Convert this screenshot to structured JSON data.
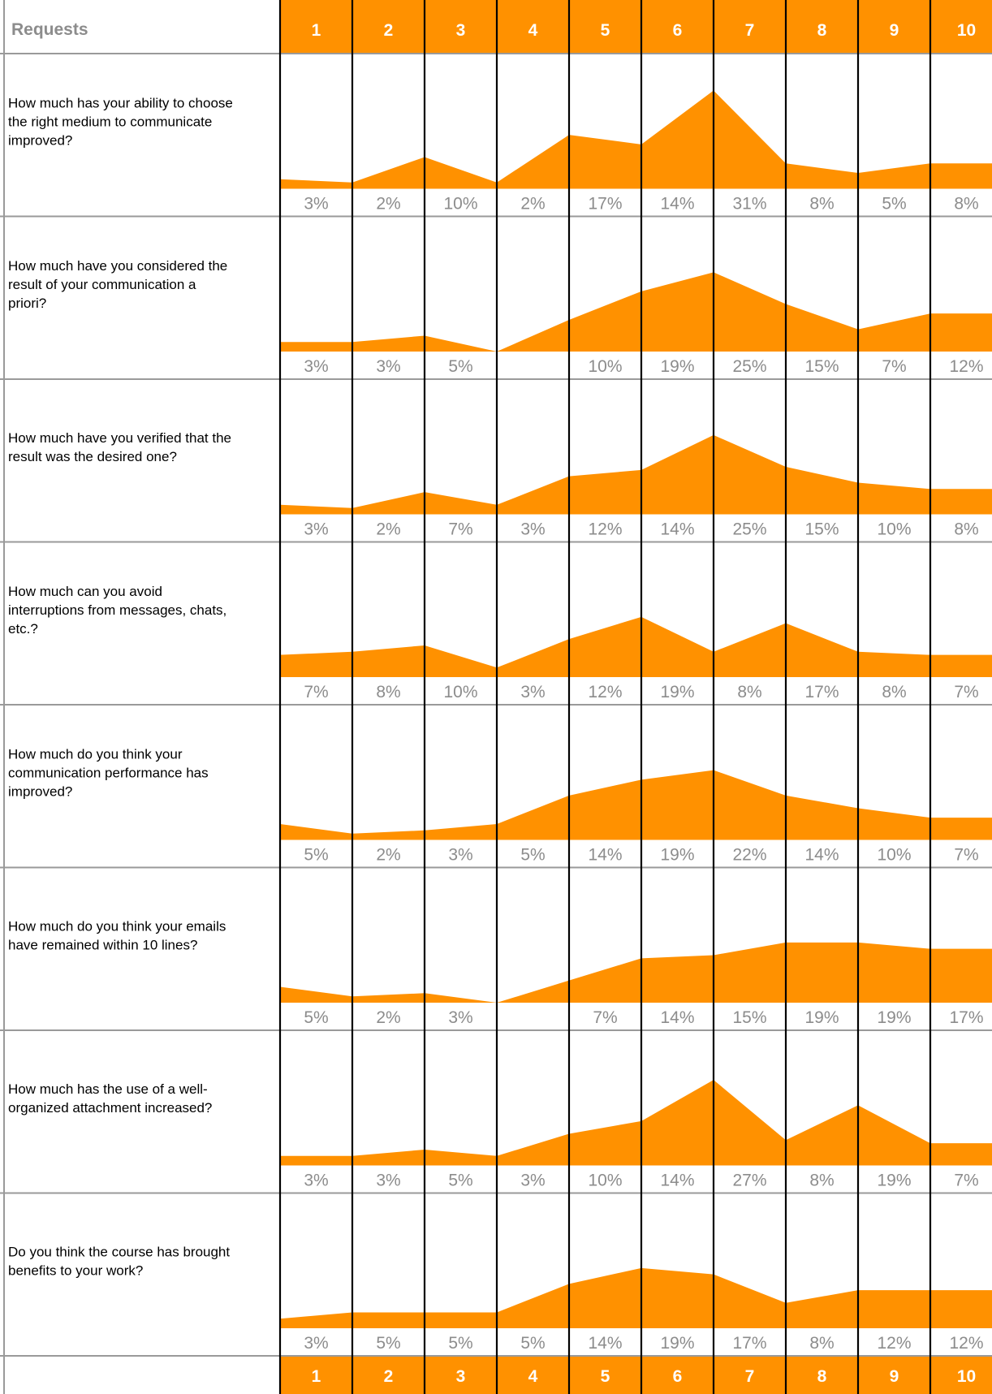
{
  "header": {
    "title": "Requests",
    "scale": [
      "1",
      "2",
      "3",
      "4",
      "5",
      "6",
      "7",
      "8",
      "9",
      "10"
    ]
  },
  "footer": {
    "scale": [
      "1",
      "2",
      "3",
      "4",
      "5",
      "6",
      "7",
      "8",
      "9",
      "10"
    ]
  },
  "colors": {
    "accent": "#ff9100",
    "grid": "#000000",
    "row_border": "#9a9a9a",
    "percent_text": "#8c8c8c"
  },
  "chart_data": {
    "type": "area",
    "x": [
      1,
      2,
      3,
      4,
      5,
      6,
      7,
      8,
      9,
      10
    ],
    "unit": "%",
    "series": [
      {
        "name": "How much has your ability to choose the right medium to communicate improved?",
        "label_lines": [
          "How much has your ability to choose",
          "the right medium to communicate",
          "improved?"
        ],
        "values": [
          3,
          2,
          10,
          2,
          17,
          14,
          31,
          8,
          5,
          8
        ],
        "labels": [
          "3%",
          "2%",
          "10%",
          "2%",
          "17%",
          "14%",
          "31%",
          "8%",
          "5%",
          "8%"
        ]
      },
      {
        "name": "How much have you considered the result of your communication a priori?",
        "label_lines": [
          "How much have you considered the",
          "result of your communication a",
          "priori?"
        ],
        "values": [
          3,
          3,
          5,
          0,
          10,
          19,
          25,
          15,
          7,
          12
        ],
        "labels": [
          "3%",
          "3%",
          "5%",
          "",
          "10%",
          "19%",
          "25%",
          "15%",
          "7%",
          "12%"
        ]
      },
      {
        "name": "How much have you verified that the result was the desired one?",
        "label_lines": [
          "How much have you verified that the",
          "result was the desired one?"
        ],
        "values": [
          3,
          2,
          7,
          3,
          12,
          14,
          25,
          15,
          10,
          8
        ],
        "labels": [
          "3%",
          "2%",
          "7%",
          "3%",
          "12%",
          "14%",
          "25%",
          "15%",
          "10%",
          "8%"
        ]
      },
      {
        "name": "How much can you avoid interruptions from messages, chats, etc.?",
        "label_lines": [
          "How much can you avoid",
          "interruptions from messages, chats,",
          "etc.?"
        ],
        "values": [
          7,
          8,
          10,
          3,
          12,
          19,
          8,
          17,
          8,
          7
        ],
        "labels": [
          "7%",
          "8%",
          "10%",
          "3%",
          "12%",
          "19%",
          "8%",
          "17%",
          "8%",
          "7%"
        ]
      },
      {
        "name": "How much do you think your communication performance has improved?",
        "label_lines": [
          "How much do you think your",
          "communication performance has",
          "improved?"
        ],
        "values": [
          5,
          2,
          3,
          5,
          14,
          19,
          22,
          14,
          10,
          7
        ],
        "labels": [
          "5%",
          "2%",
          "3%",
          "5%",
          "14%",
          "19%",
          "22%",
          "14%",
          "10%",
          "7%"
        ]
      },
      {
        "name": "How much do you think your emails have remained within 10 lines?",
        "label_lines": [
          "How much do you think your emails",
          "have remained within 10 lines?"
        ],
        "values": [
          5,
          2,
          3,
          0,
          7,
          14,
          15,
          19,
          19,
          17
        ],
        "labels": [
          "5%",
          "2%",
          "3%",
          "",
          "7%",
          "14%",
          "15%",
          "19%",
          "19%",
          "17%"
        ]
      },
      {
        "name": "How much has the use of a well-organized attachment increased?",
        "label_lines": [
          "How much has the use of a well-",
          "organized attachment increased?"
        ],
        "values": [
          3,
          3,
          5,
          3,
          10,
          14,
          27,
          8,
          19,
          7
        ],
        "labels": [
          "3%",
          "3%",
          "5%",
          "3%",
          "10%",
          "14%",
          "27%",
          "8%",
          "19%",
          "7%"
        ]
      },
      {
        "name": "Do you think the course has brought benefits to your work?",
        "label_lines": [
          "Do you think the course has brought",
          "benefits to your work?"
        ],
        "values": [
          3,
          5,
          5,
          5,
          14,
          19,
          17,
          8,
          12,
          12
        ],
        "labels": [
          "3%",
          "5%",
          "5%",
          "5%",
          "14%",
          "19%",
          "17%",
          "8%",
          "12%",
          "12%"
        ]
      }
    ]
  }
}
